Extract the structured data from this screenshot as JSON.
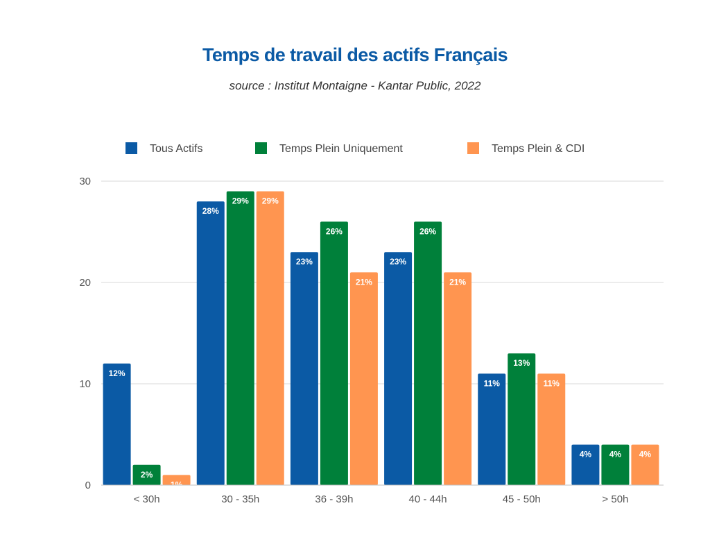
{
  "title": "Temps de travail des actifs Français",
  "subtitle": "source : Institut Montaigne - Kantar Public, 2022",
  "colors": {
    "title": "#0b5aa5",
    "grid": "#d9d9d9",
    "axis": "#bfbfbf"
  },
  "chart_data": {
    "type": "bar",
    "categories": [
      "< 30h",
      "30 - 35h",
      "36 - 39h",
      "40 - 44h",
      "45 - 50h",
      "> 50h"
    ],
    "series": [
      {
        "name": "Tous Actifs",
        "color": "#0b5aa5",
        "values": [
          12,
          28,
          23,
          23,
          11,
          4
        ],
        "labels": [
          "12%",
          "28%",
          "23%",
          "23%",
          "11%",
          "4%"
        ]
      },
      {
        "name": "Temps Plein Uniquement",
        "color": "#00803a",
        "values": [
          2,
          29,
          26,
          26,
          13,
          4
        ],
        "labels": [
          "2%",
          "29%",
          "26%",
          "26%",
          "13%",
          "4%"
        ]
      },
      {
        "name": "Temps Plein & CDI",
        "color": "#ff9550",
        "values": [
          1,
          29,
          21,
          21,
          11,
          4
        ],
        "labels": [
          "1%",
          "29%",
          "21%",
          "21%",
          "11%",
          "4%"
        ]
      }
    ],
    "ylim": [
      0,
      30
    ],
    "yticks": [
      0,
      10,
      20,
      30
    ],
    "grid": true,
    "legend_position": "top"
  }
}
